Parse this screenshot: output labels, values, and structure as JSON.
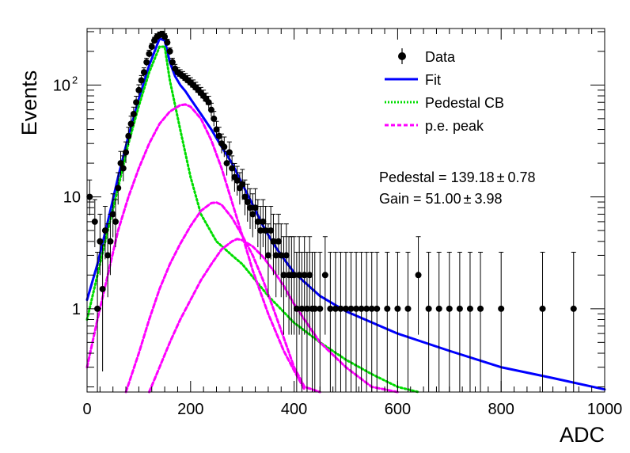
{
  "chart_data": {
    "type": "scatter",
    "title": "",
    "xlabel": "ADC",
    "ylabel": "Events",
    "xlim": [
      0,
      1000
    ],
    "ylim": [
      0.18,
      320
    ],
    "yscale": "log",
    "grid": false,
    "legend_position": "top-right",
    "x_ticks": [
      {
        "value": 0,
        "label": "0"
      },
      {
        "value": 200,
        "label": "200"
      },
      {
        "value": 400,
        "label": "400"
      },
      {
        "value": 600,
        "label": "600"
      },
      {
        "value": 800,
        "label": "800"
      },
      {
        "value": 1000,
        "label": "1000"
      }
    ],
    "y_ticks": [
      {
        "value": 1,
        "label": "1"
      },
      {
        "value": 10,
        "label": "10"
      },
      {
        "value": 100,
        "label": "10",
        "sup": "2"
      }
    ],
    "legend": [
      {
        "name": "Data",
        "style": "marker",
        "color": "#000000"
      },
      {
        "name": "Fit",
        "style": "solid",
        "color": "#0000ff"
      },
      {
        "name": "Pedestal CB",
        "style": "dotted",
        "color": "#00dd00"
      },
      {
        "name": "p.e. peak",
        "style": "dashed",
        "color": "#ff00ff"
      }
    ],
    "annotations": [
      {
        "text": "Pedestal = 139.18",
        "pm": "0.78"
      },
      {
        "text": "Gain = 51.00",
        "pm": "3.98"
      }
    ],
    "series": [
      {
        "name": "Data",
        "style": "marker",
        "color": "#000000",
        "points": [
          [
            5,
            10
          ],
          [
            15,
            6
          ],
          [
            20,
            1
          ],
          [
            25,
            4
          ],
          [
            30,
            1.5
          ],
          [
            35,
            5
          ],
          [
            40,
            3
          ],
          [
            45,
            4
          ],
          [
            50,
            7
          ],
          [
            55,
            6
          ],
          [
            60,
            12
          ],
          [
            65,
            20
          ],
          [
            70,
            18
          ],
          [
            75,
            25
          ],
          [
            80,
            35
          ],
          [
            85,
            45
          ],
          [
            90,
            55
          ],
          [
            95,
            70
          ],
          [
            100,
            90
          ],
          [
            105,
            110
          ],
          [
            110,
            130
          ],
          [
            115,
            160
          ],
          [
            120,
            190
          ],
          [
            125,
            220
          ],
          [
            130,
            250
          ],
          [
            135,
            270
          ],
          [
            140,
            280
          ],
          [
            145,
            285
          ],
          [
            150,
            270
          ],
          [
            155,
            240
          ],
          [
            160,
            200
          ],
          [
            165,
            160
          ],
          [
            170,
            140
          ],
          [
            175,
            130
          ],
          [
            180,
            125
          ],
          [
            185,
            120
          ],
          [
            190,
            115
          ],
          [
            195,
            110
          ],
          [
            200,
            105
          ],
          [
            205,
            100
          ],
          [
            210,
            95
          ],
          [
            215,
            90
          ],
          [
            220,
            85
          ],
          [
            225,
            80
          ],
          [
            230,
            75
          ],
          [
            235,
            70
          ],
          [
            240,
            60
          ],
          [
            245,
            50
          ],
          [
            250,
            40
          ],
          [
            255,
            35
          ],
          [
            260,
            30
          ],
          [
            265,
            28
          ],
          [
            270,
            20
          ],
          [
            275,
            25
          ],
          [
            280,
            18
          ],
          [
            285,
            15
          ],
          [
            290,
            14
          ],
          [
            295,
            12
          ],
          [
            300,
            13
          ],
          [
            305,
            10
          ],
          [
            310,
            9
          ],
          [
            315,
            8
          ],
          [
            320,
            7
          ],
          [
            325,
            8
          ],
          [
            330,
            6
          ],
          [
            335,
            5
          ],
          [
            340,
            6
          ],
          [
            345,
            5
          ],
          [
            350,
            3
          ],
          [
            355,
            5
          ],
          [
            360,
            4
          ],
          [
            365,
            3
          ],
          [
            370,
            4
          ],
          [
            375,
            3
          ],
          [
            380,
            2
          ],
          [
            385,
            3
          ],
          [
            390,
            2
          ],
          [
            395,
            2
          ],
          [
            400,
            2
          ],
          [
            405,
            1
          ],
          [
            410,
            2
          ],
          [
            415,
            1
          ],
          [
            420,
            2
          ],
          [
            425,
            1
          ],
          [
            430,
            2
          ],
          [
            435,
            1
          ],
          [
            440,
            1
          ],
          [
            450,
            1
          ],
          [
            460,
            2
          ],
          [
            470,
            1
          ],
          [
            480,
            1
          ],
          [
            490,
            1
          ],
          [
            500,
            1
          ],
          [
            510,
            1
          ],
          [
            520,
            1
          ],
          [
            530,
            1
          ],
          [
            540,
            1
          ],
          [
            550,
            1
          ],
          [
            560,
            1
          ],
          [
            580,
            1
          ],
          [
            600,
            1
          ],
          [
            620,
            1
          ],
          [
            640,
            2
          ],
          [
            660,
            1
          ],
          [
            680,
            1
          ],
          [
            700,
            1
          ],
          [
            720,
            1
          ],
          [
            740,
            1
          ],
          [
            760,
            1
          ],
          [
            800,
            1
          ],
          [
            880,
            1
          ],
          [
            940,
            1
          ]
        ]
      },
      {
        "name": "Fit",
        "style": "solid",
        "color": "#0000ff",
        "points": [
          [
            0,
            1.2
          ],
          [
            20,
            2.5
          ],
          [
            40,
            6
          ],
          [
            60,
            15
          ],
          [
            80,
            35
          ],
          [
            100,
            75
          ],
          [
            120,
            150
          ],
          [
            140,
            260
          ],
          [
            150,
            250
          ],
          [
            160,
            160
          ],
          [
            170,
            120
          ],
          [
            180,
            100
          ],
          [
            190,
            88
          ],
          [
            200,
            75
          ],
          [
            220,
            55
          ],
          [
            240,
            40
          ],
          [
            260,
            28
          ],
          [
            280,
            20
          ],
          [
            300,
            13
          ],
          [
            320,
            8.5
          ],
          [
            340,
            5.5
          ],
          [
            360,
            3.8
          ],
          [
            380,
            2.8
          ],
          [
            400,
            2.1
          ],
          [
            450,
            1.3
          ],
          [
            500,
            0.95
          ],
          [
            600,
            0.6
          ],
          [
            700,
            0.42
          ],
          [
            800,
            0.3
          ],
          [
            900,
            0.24
          ],
          [
            1000,
            0.19
          ]
        ]
      },
      {
        "name": "Pedestal CB",
        "style": "dotted",
        "color": "#00dd00",
        "points": [
          [
            0,
            0.8
          ],
          [
            20,
            2
          ],
          [
            40,
            5
          ],
          [
            60,
            12
          ],
          [
            80,
            30
          ],
          [
            100,
            65
          ],
          [
            120,
            130
          ],
          [
            140,
            220
          ],
          [
            150,
            220
          ],
          [
            160,
            110
          ],
          [
            180,
            40
          ],
          [
            200,
            15
          ],
          [
            220,
            7
          ],
          [
            250,
            4
          ],
          [
            280,
            3
          ],
          [
            300,
            2.5
          ],
          [
            350,
            1.3
          ],
          [
            400,
            0.75
          ],
          [
            450,
            0.5
          ],
          [
            500,
            0.35
          ],
          [
            550,
            0.26
          ],
          [
            600,
            0.2
          ],
          [
            640,
            0.18
          ]
        ]
      },
      {
        "name": "p.e. peak",
        "style": "dashed",
        "color": "#ff00ff",
        "points": [
          [
            0,
            0.3
          ],
          [
            20,
            0.8
          ],
          [
            40,
            2
          ],
          [
            60,
            5
          ],
          [
            80,
            10
          ],
          [
            100,
            18
          ],
          [
            120,
            30
          ],
          [
            140,
            45
          ],
          [
            160,
            58
          ],
          [
            180,
            66
          ],
          [
            190,
            67
          ],
          [
            200,
            64
          ],
          [
            220,
            50
          ],
          [
            240,
            32
          ],
          [
            260,
            18
          ],
          [
            280,
            9
          ],
          [
            300,
            4.5
          ],
          [
            320,
            2.2
          ],
          [
            350,
            0.9
          ],
          [
            380,
            0.42
          ],
          [
            400,
            0.28
          ],
          [
            420,
            0.19
          ]
        ]
      },
      {
        "name": "p.e. peak 2",
        "style": "dashed",
        "color": "#ff00ff",
        "points": [
          [
            75,
            0.18
          ],
          [
            100,
            0.4
          ],
          [
            120,
            0.8
          ],
          [
            140,
            1.5
          ],
          [
            160,
            2.5
          ],
          [
            180,
            3.8
          ],
          [
            200,
            5.5
          ],
          [
            220,
            7.5
          ],
          [
            240,
            8.8
          ],
          [
            250,
            8.9
          ],
          [
            260,
            8.5
          ],
          [
            280,
            6.5
          ],
          [
            300,
            4.5
          ],
          [
            320,
            3
          ],
          [
            340,
            1.8
          ],
          [
            360,
            1
          ],
          [
            380,
            0.55
          ],
          [
            400,
            0.3
          ],
          [
            420,
            0.2
          ],
          [
            450,
            0.18
          ]
        ]
      },
      {
        "name": "p.e. peak 3",
        "style": "dashed",
        "color": "#ff00ff",
        "points": [
          [
            120,
            0.18
          ],
          [
            140,
            0.3
          ],
          [
            160,
            0.5
          ],
          [
            180,
            0.8
          ],
          [
            200,
            1.2
          ],
          [
            220,
            1.8
          ],
          [
            240,
            2.5
          ],
          [
            260,
            3.4
          ],
          [
            280,
            4
          ],
          [
            290,
            4.2
          ],
          [
            300,
            4.1
          ],
          [
            320,
            3.6
          ],
          [
            340,
            2.9
          ],
          [
            360,
            2.2
          ],
          [
            380,
            1.6
          ],
          [
            400,
            1.1
          ],
          [
            420,
            0.8
          ],
          [
            450,
            0.5
          ],
          [
            500,
            0.3
          ],
          [
            550,
            0.2
          ],
          [
            600,
            0.18
          ]
        ]
      }
    ]
  }
}
